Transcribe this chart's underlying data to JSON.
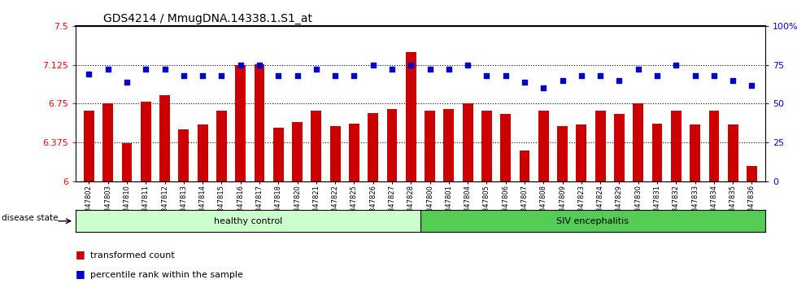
{
  "title": "GDS4214 / MmugDNA.14338.1.S1_at",
  "samples": [
    "GSM347802",
    "GSM347803",
    "GSM347810",
    "GSM347811",
    "GSM347812",
    "GSM347813",
    "GSM347814",
    "GSM347815",
    "GSM347816",
    "GSM347817",
    "GSM347818",
    "GSM347820",
    "GSM347821",
    "GSM347822",
    "GSM347825",
    "GSM347826",
    "GSM347827",
    "GSM347828",
    "GSM347800",
    "GSM347801",
    "GSM347804",
    "GSM347805",
    "GSM347806",
    "GSM347807",
    "GSM347808",
    "GSM347809",
    "GSM347823",
    "GSM347824",
    "GSM347829",
    "GSM347830",
    "GSM347831",
    "GSM347832",
    "GSM347833",
    "GSM347834",
    "GSM347835",
    "GSM347836"
  ],
  "bar_values": [
    6.68,
    6.75,
    6.37,
    6.77,
    6.83,
    6.5,
    6.55,
    6.68,
    7.12,
    7.13,
    6.52,
    6.57,
    6.68,
    6.53,
    6.56,
    6.66,
    6.7,
    7.25,
    6.68,
    6.7,
    6.75,
    6.68,
    6.65,
    6.3,
    6.68,
    6.53,
    6.55,
    6.68,
    6.65,
    6.75,
    6.56,
    6.68,
    6.55,
    6.68,
    6.55,
    6.15
  ],
  "dot_values": [
    69,
    72,
    64,
    72,
    72,
    68,
    68,
    68,
    75,
    75,
    68,
    68,
    72,
    68,
    68,
    75,
    72,
    75,
    72,
    72,
    75,
    68,
    68,
    64,
    60,
    65,
    68,
    68,
    65,
    72,
    68,
    75,
    68,
    68,
    65,
    62
  ],
  "group1_label": "healthy control",
  "group2_label": "SIV encephalitis",
  "group1_count": 18,
  "group2_count": 18,
  "ylim_left": [
    6.0,
    7.5
  ],
  "ylim_right": [
    0,
    100
  ],
  "yticks_left": [
    6.0,
    6.375,
    6.75,
    7.125,
    7.5
  ],
  "yticks_right": [
    0,
    25,
    50,
    75,
    100
  ],
  "ytick_labels_left": [
    "6",
    "6.375",
    "6.75",
    "7.125",
    "7.5"
  ],
  "ytick_labels_right": [
    "0",
    "25",
    "50",
    "75",
    "100%"
  ],
  "hlines": [
    6.375,
    6.75,
    7.125
  ],
  "bar_color": "#cc0000",
  "dot_color": "#0000cc",
  "bar_width": 0.55,
  "group1_bg": "#ccffcc",
  "group2_bg": "#55cc55",
  "disease_state_label": "disease state",
  "legend_bar_label": "transformed count",
  "legend_dot_label": "percentile rank within the sample",
  "title_fontsize": 10,
  "axis_fontsize": 8,
  "tick_fontsize": 6
}
